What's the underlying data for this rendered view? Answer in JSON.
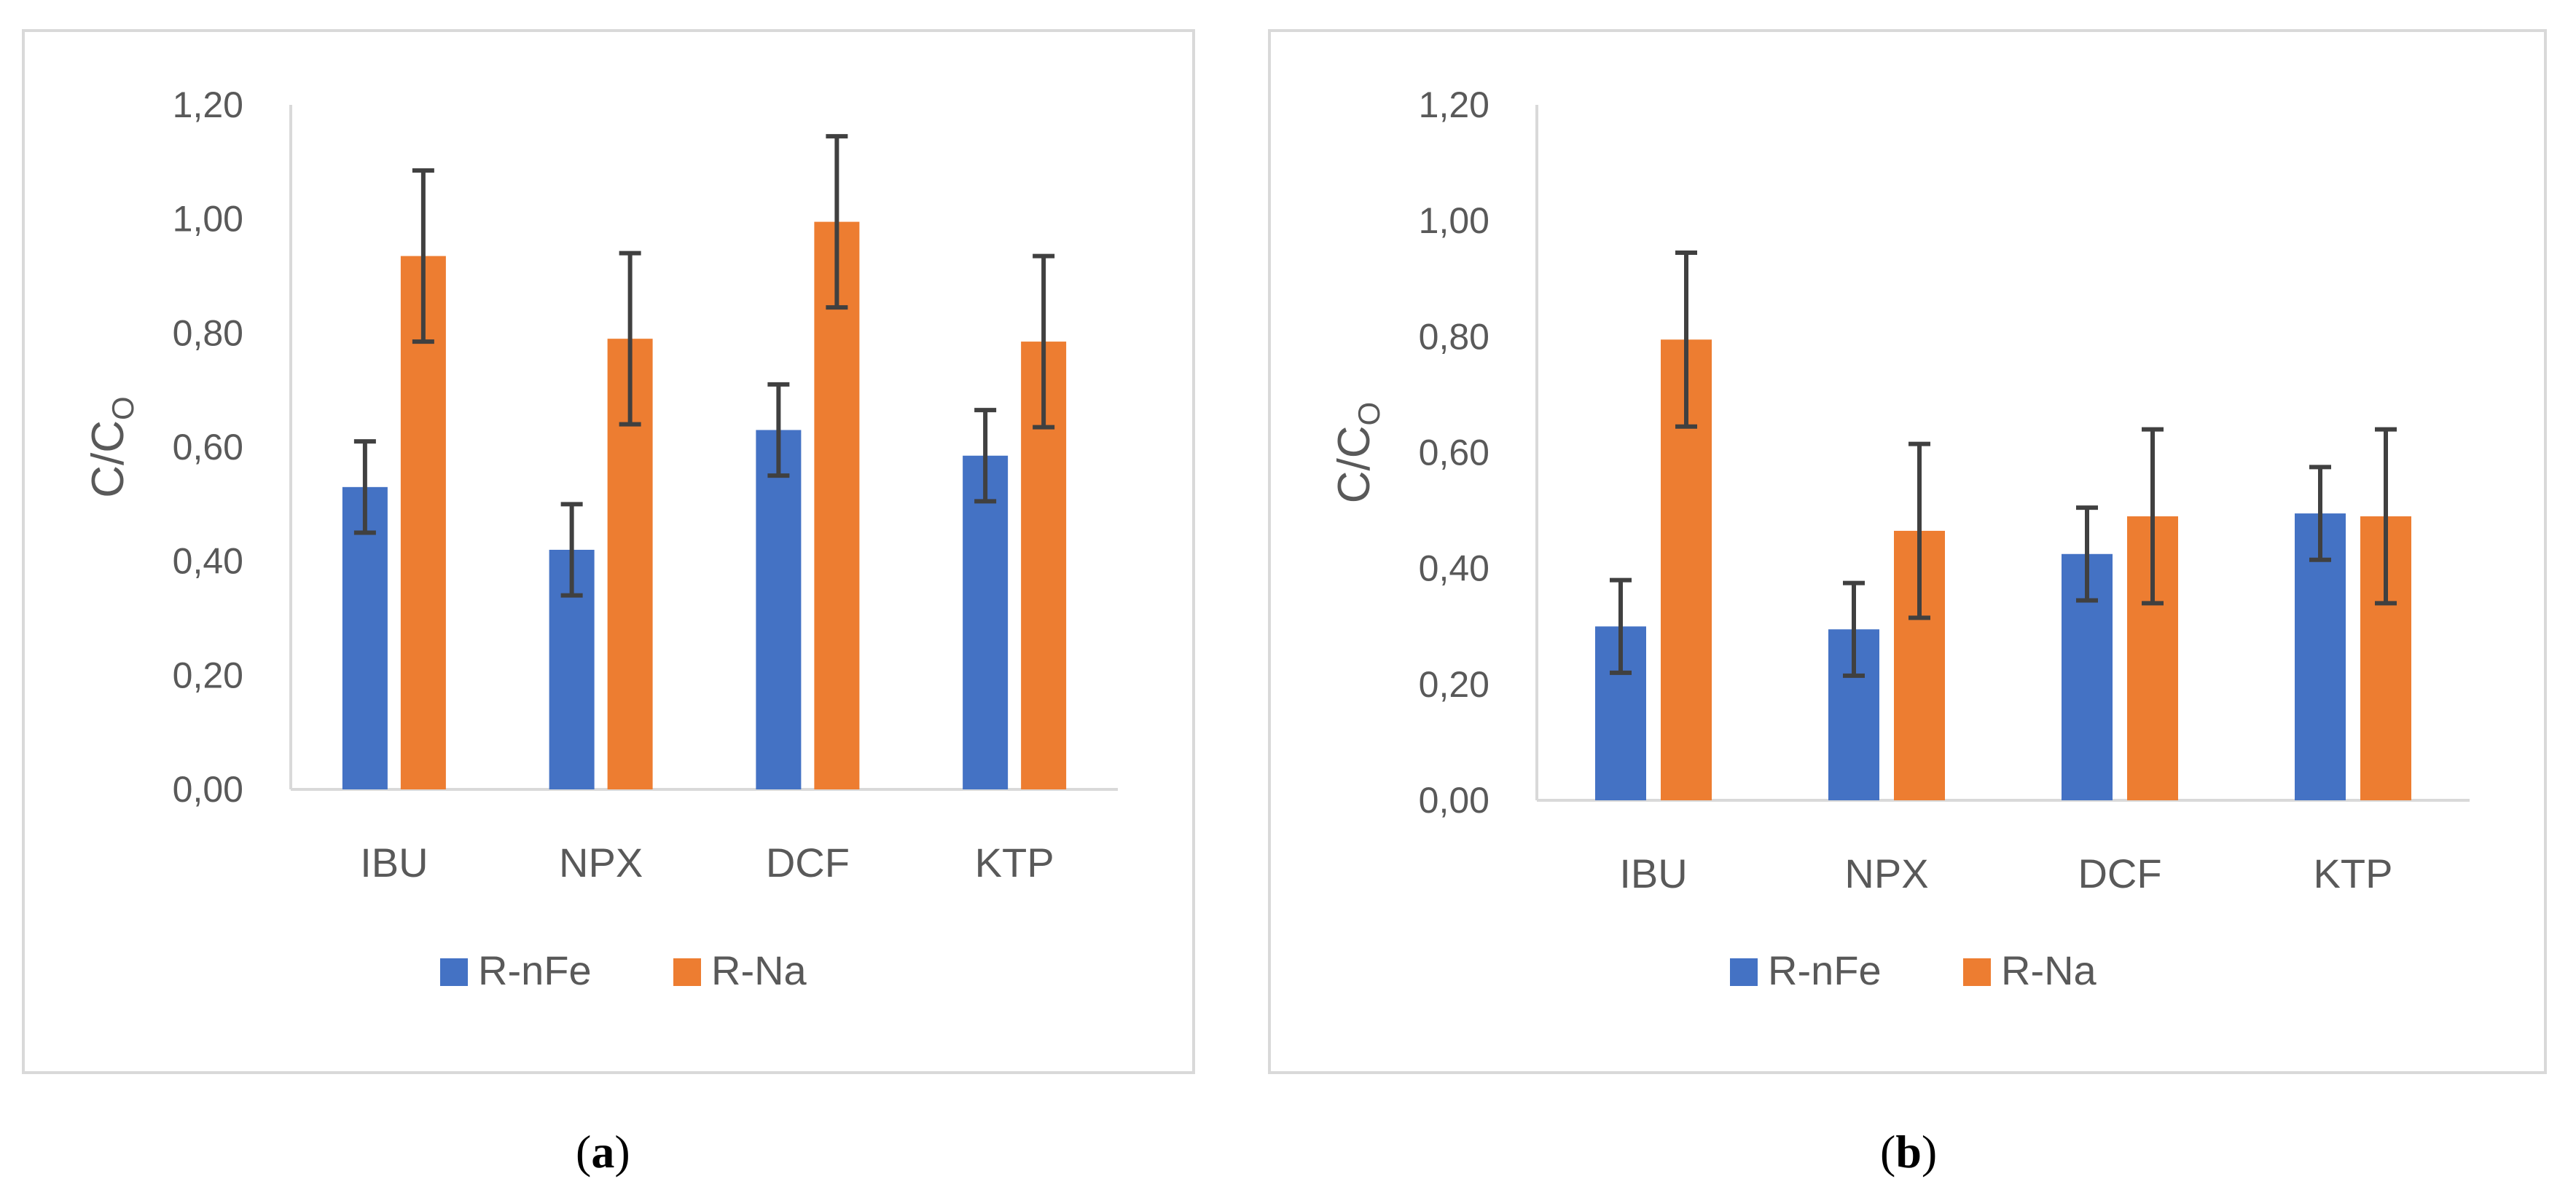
{
  "chart_data": [
    {
      "type": "bar",
      "panel_label": "a",
      "title": "",
      "ylabel": "C/C",
      "ylabel_subscript": "O",
      "ylim": [
        0,
        1.2
      ],
      "y_ticks": [
        "0,00",
        "0,20",
        "0,40",
        "0,60",
        "0,80",
        "1,00",
        "1,20"
      ],
      "y_tick_values": [
        0,
        0.2,
        0.4,
        0.6,
        0.8,
        1.0,
        1.2
      ],
      "categories": [
        "IBU",
        "NPX",
        "DCF",
        "KTP"
      ],
      "series": [
        {
          "name": "R-nFe",
          "color": "#4472c4",
          "values": [
            0.53,
            0.42,
            0.63,
            0.585
          ],
          "errors": [
            0.08,
            0.08,
            0.08,
            0.08
          ]
        },
        {
          "name": "R-Na",
          "color": "#ed7d31",
          "values": [
            0.935,
            0.79,
            0.995,
            0.785
          ],
          "errors": [
            0.15,
            0.15,
            0.15,
            0.15
          ]
        }
      ],
      "legend": "bottom"
    },
    {
      "type": "bar",
      "panel_label": "b",
      "title": "",
      "ylabel": "C/C",
      "ylabel_subscript": "O",
      "ylim": [
        0,
        1.2
      ],
      "y_ticks": [
        "0,00",
        "0,20",
        "0,40",
        "0,60",
        "0,80",
        "1,00",
        "1,20"
      ],
      "y_tick_values": [
        0,
        0.2,
        0.4,
        0.6,
        0.8,
        1.0,
        1.2
      ],
      "categories": [
        "IBU",
        "NPX",
        "DCF",
        "KTP"
      ],
      "series": [
        {
          "name": "R-nFe",
          "color": "#4472c4",
          "values": [
            0.3,
            0.295,
            0.425,
            0.495
          ],
          "errors": [
            0.08,
            0.08,
            0.08,
            0.08
          ]
        },
        {
          "name": "R-Na",
          "color": "#ed7d31",
          "values": [
            0.795,
            0.465,
            0.49,
            0.49
          ],
          "errors": [
            0.15,
            0.15,
            0.15,
            0.15
          ]
        }
      ],
      "legend": "bottom"
    }
  ],
  "captions": [
    "a",
    "b"
  ],
  "colors": {
    "axis": "#d9d9d9",
    "text": "#595959",
    "error_bar": "#404040"
  }
}
